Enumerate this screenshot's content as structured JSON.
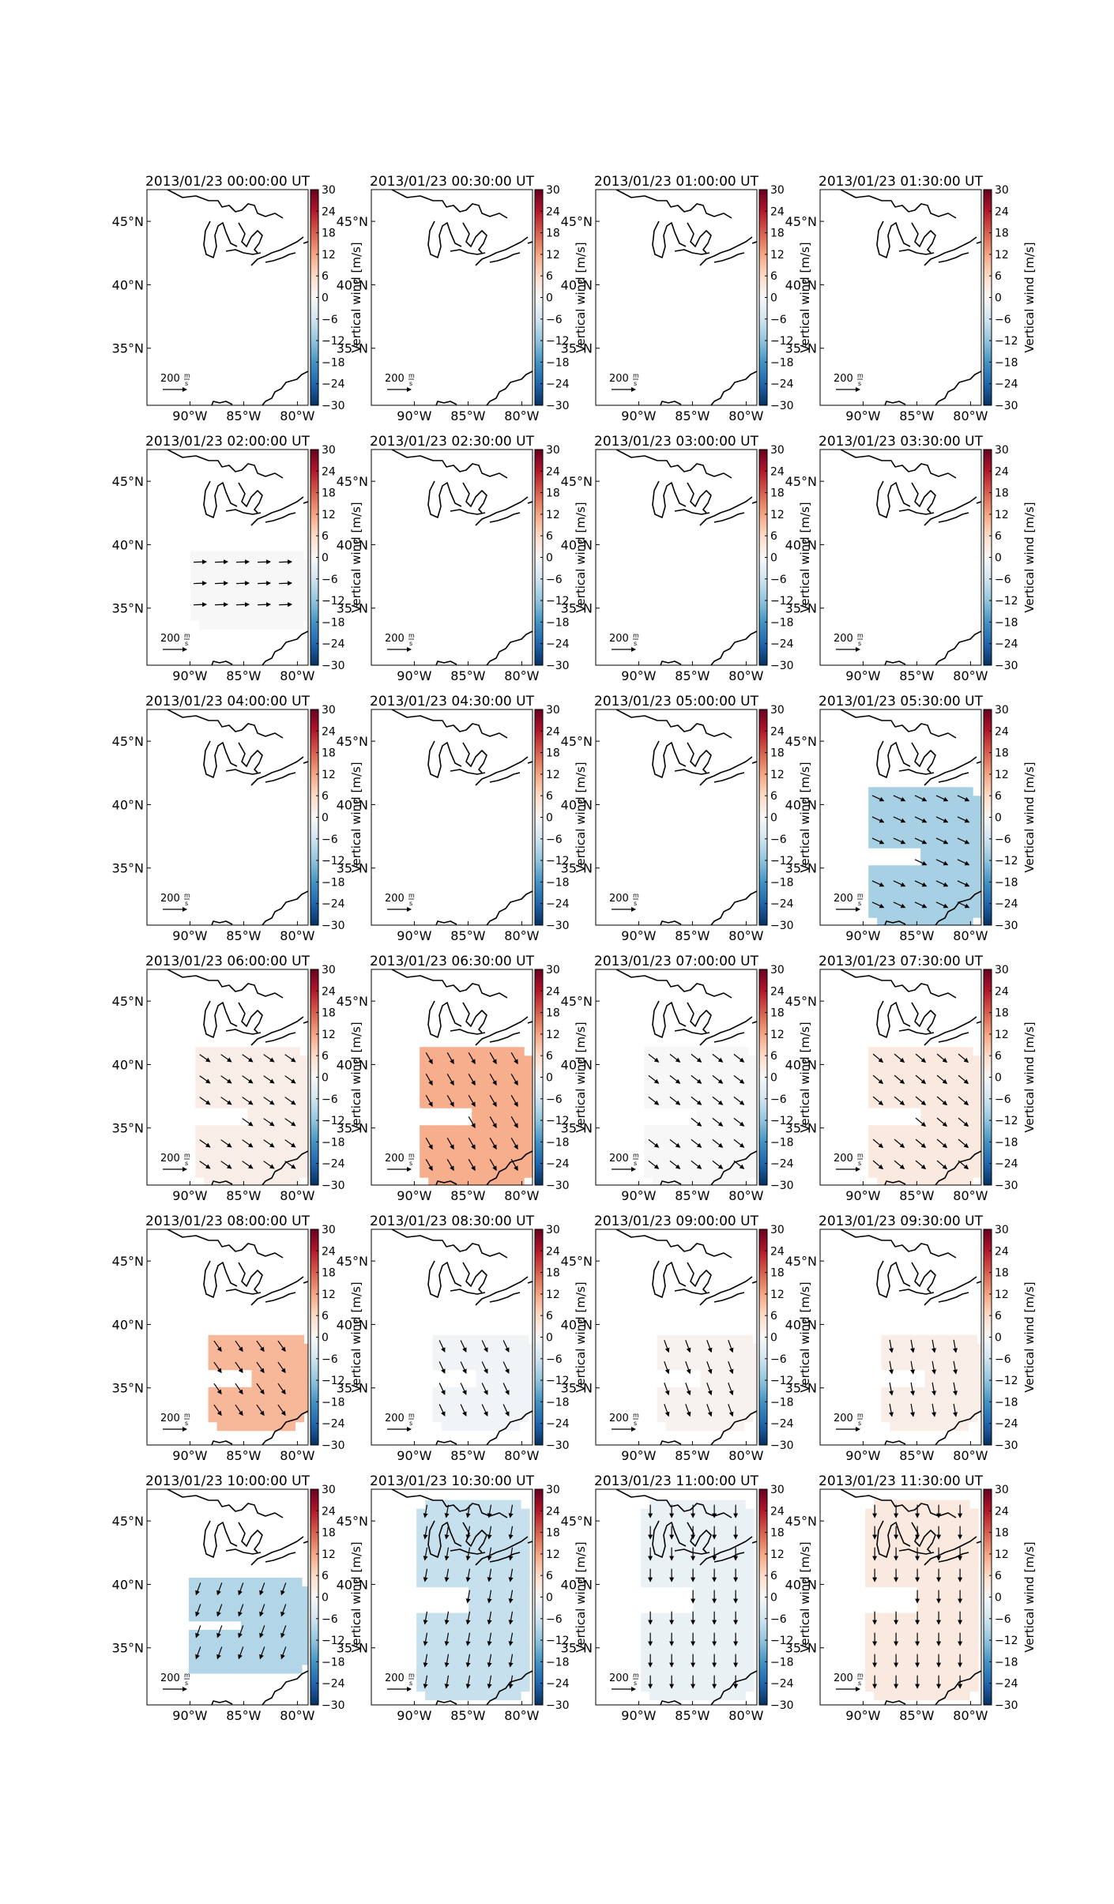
{
  "figure": {
    "colorbar": {
      "label": "Vertical wind [m/s]",
      "ticks": [
        30,
        24,
        18,
        12,
        6,
        0,
        -6,
        -12,
        -18,
        -24,
        -30
      ],
      "range": [
        -30,
        30
      ],
      "colormap_stops": [
        "#053061",
        "#2166ac",
        "#4393c3",
        "#92c5de",
        "#d1e5f0",
        "#f7f7f7",
        "#fddbc7",
        "#f4a582",
        "#d6604d",
        "#b2182b",
        "#67001f"
      ]
    },
    "map": {
      "lat_ticks": [
        "45°N",
        "40°N",
        "35°N"
      ],
      "lat_values": [
        45,
        40,
        35
      ],
      "lon_ticks": [
        "90°W",
        "85°W",
        "80°W"
      ],
      "lon_values": [
        -90,
        -85,
        -80
      ],
      "lon_range": [
        -94,
        -79
      ],
      "lat_range": [
        30.5,
        47.5
      ]
    },
    "scale_arrow": {
      "value": "200",
      "unit_numerator": "m",
      "unit_denominator": "s"
    }
  },
  "chart_data": [
    {
      "type": "heatmap",
      "title": "2013/01/23 00:00:00 UT",
      "region": "none",
      "vertical_wind": null
    },
    {
      "type": "heatmap",
      "title": "2013/01/23 00:30:00 UT",
      "region": "none",
      "vertical_wind": null
    },
    {
      "type": "heatmap",
      "title": "2013/01/23 01:00:00 UT",
      "region": "none",
      "vertical_wind": null
    },
    {
      "type": "heatmap",
      "title": "2013/01/23 01:30:00 UT",
      "region": "none",
      "vertical_wind": null
    },
    {
      "type": "heatmap",
      "title": "2013/01/23 02:00:00 UT",
      "region": "partial",
      "vertical_wind": 0,
      "arrow_direction_deg": 2
    },
    {
      "type": "heatmap",
      "title": "2013/01/23 02:30:00 UT",
      "region": "none",
      "vertical_wind": null
    },
    {
      "type": "heatmap",
      "title": "2013/01/23 03:00:00 UT",
      "region": "none",
      "vertical_wind": null
    },
    {
      "type": "heatmap",
      "title": "2013/01/23 03:30:00 UT",
      "region": "none",
      "vertical_wind": null
    },
    {
      "type": "heatmap",
      "title": "2013/01/23 04:00:00 UT",
      "region": "none",
      "vertical_wind": null
    },
    {
      "type": "heatmap",
      "title": "2013/01/23 04:30:00 UT",
      "region": "none",
      "vertical_wind": null
    },
    {
      "type": "heatmap",
      "title": "2013/01/23 05:00:00 UT",
      "region": "none",
      "vertical_wind": null
    },
    {
      "type": "heatmap",
      "title": "2013/01/23 05:30:00 UT",
      "region": "full",
      "vertical_wind": -10,
      "arrow_direction_deg": -25
    },
    {
      "type": "heatmap",
      "title": "2013/01/23 06:00:00 UT",
      "region": "full",
      "vertical_wind": 2,
      "arrow_direction_deg": -35
    },
    {
      "type": "heatmap",
      "title": "2013/01/23 06:30:00 UT",
      "region": "full",
      "vertical_wind": 11,
      "arrow_direction_deg": -60
    },
    {
      "type": "heatmap",
      "title": "2013/01/23 07:00:00 UT",
      "region": "full",
      "vertical_wind": 0,
      "arrow_direction_deg": -38
    },
    {
      "type": "heatmap",
      "title": "2013/01/23 07:30:00 UT",
      "region": "full",
      "vertical_wind": 3,
      "arrow_direction_deg": -40
    },
    {
      "type": "heatmap",
      "title": "2013/01/23 08:00:00 UT",
      "region": "south",
      "vertical_wind": 10,
      "arrow_direction_deg": -55
    },
    {
      "type": "heatmap",
      "title": "2013/01/23 08:30:00 UT",
      "region": "south",
      "vertical_wind": -1,
      "arrow_direction_deg": -65
    },
    {
      "type": "heatmap",
      "title": "2013/01/23 09:00:00 UT",
      "region": "south",
      "vertical_wind": 1,
      "arrow_direction_deg": -70
    },
    {
      "type": "heatmap",
      "title": "2013/01/23 09:30:00 UT",
      "region": "south",
      "vertical_wind": 2,
      "arrow_direction_deg": -80
    },
    {
      "type": "heatmap",
      "title": "2013/01/23 10:00:00 UT",
      "region": "south-low",
      "vertical_wind": -9,
      "arrow_direction_deg": -110
    },
    {
      "type": "heatmap",
      "title": "2013/01/23 10:30:00 UT",
      "region": "full-north",
      "vertical_wind": -7,
      "arrow_direction_deg": -100
    },
    {
      "type": "heatmap",
      "title": "2013/01/23 11:00:00 UT",
      "region": "full-north",
      "vertical_wind": -2,
      "arrow_direction_deg": -90
    },
    {
      "type": "heatmap",
      "title": "2013/01/23 11:30:00 UT",
      "region": "full-north",
      "vertical_wind": 3,
      "arrow_direction_deg": -90
    }
  ]
}
